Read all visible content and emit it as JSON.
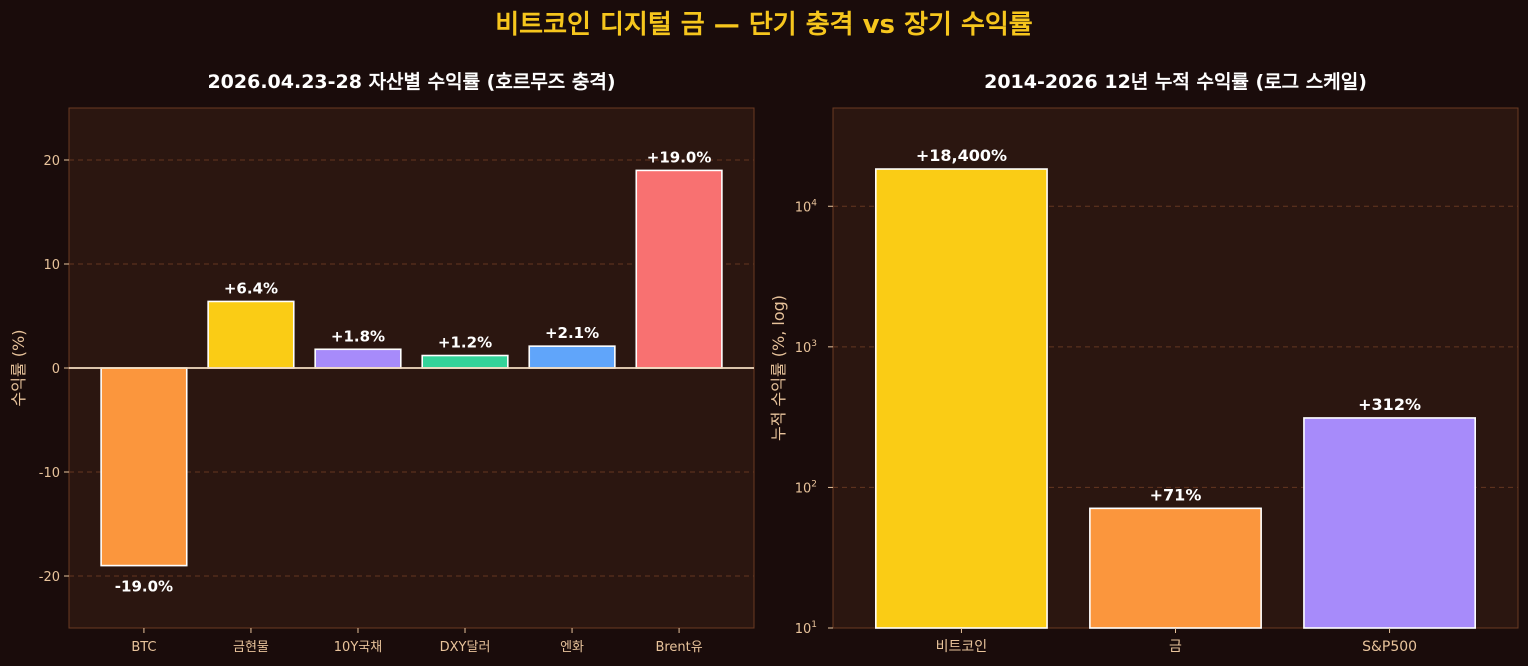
{
  "figure": {
    "title": "비트코인 디지털 금 — 단기 충격 vs 장기 수익률"
  },
  "colors": {
    "background": "#1a0c0b",
    "axes_bg": "#2b1610",
    "spine": "#6b3a22",
    "grid": "#6b3a22",
    "tick_text": "#e8c39b",
    "title_text": "#ffffff",
    "accent_title": "#f6c61d",
    "bar_edge": "#ffffff",
    "zero_line": "#f3dcc0"
  },
  "chart_data": [
    {
      "type": "bar",
      "title": "2026.04.23-28 자산별 수익률 (호르무즈 충격)",
      "xlabel": "",
      "ylabel": "수익률 (%)",
      "ylim": [
        -25,
        25
      ],
      "yticks": [
        -20,
        -10,
        0,
        10,
        20
      ],
      "ytick_labels": [
        "-20",
        "-10",
        "0",
        "10",
        "20"
      ],
      "grid": true,
      "categories": [
        "BTC",
        "금현물",
        "10Y국채",
        "DXY달러",
        "엔화",
        "Brent유"
      ],
      "values": [
        -19.0,
        6.4,
        1.8,
        1.2,
        2.1,
        19.0
      ],
      "labels": [
        "-19.0%",
        "+6.4%",
        "+1.8%",
        "+1.2%",
        "+2.1%",
        "+19.0%"
      ],
      "colors": [
        "#fb963d",
        "#facc15",
        "#a78bfa",
        "#34d399",
        "#60a5fa",
        "#f87171"
      ]
    },
    {
      "type": "bar",
      "title": "2014-2026 12년 누적 수익률 (로그 스케일)",
      "xlabel": "",
      "ylabel": "누적 수익률 (%, log)",
      "yscale": "log",
      "ylim": [
        10,
        50000
      ],
      "yticks": [
        10,
        100,
        1000,
        10000
      ],
      "ytick_labels": [
        "10",
        "10",
        "10",
        "10"
      ],
      "ytick_exponents": [
        "1",
        "2",
        "3",
        "4"
      ],
      "grid": true,
      "categories": [
        "비트코인",
        "금",
        "S&P500"
      ],
      "values": [
        18400,
        71,
        312
      ],
      "labels": [
        "+18,400%",
        "+71%",
        "+312%"
      ],
      "colors": [
        "#facc15",
        "#fb963d",
        "#a78bfa"
      ]
    }
  ]
}
